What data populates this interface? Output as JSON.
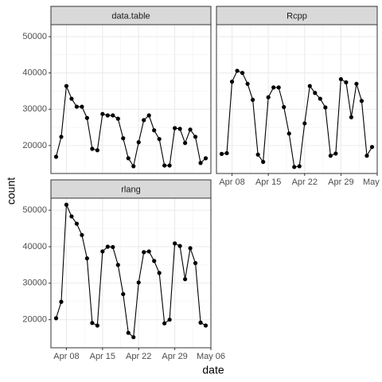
{
  "chart_data": {
    "type": "line",
    "facets": true,
    "xlabel": "date",
    "ylabel": "count",
    "color": "#000000",
    "grid": true,
    "x": [
      "Apr 06",
      "Apr 07",
      "Apr 08",
      "Apr 09",
      "Apr 10",
      "Apr 11",
      "Apr 12",
      "Apr 13",
      "Apr 14",
      "Apr 15",
      "Apr 16",
      "Apr 17",
      "Apr 18",
      "Apr 19",
      "Apr 20",
      "Apr 21",
      "Apr 22",
      "Apr 23",
      "Apr 24",
      "Apr 25",
      "Apr 26",
      "Apr 27",
      "Apr 28",
      "Apr 29",
      "Apr 30",
      "May 01",
      "May 02",
      "May 03",
      "May 04",
      "May 05"
    ],
    "xlim": [
      "Apr 05",
      "May 06"
    ],
    "xticks": [
      "Apr 08",
      "Apr 15",
      "Apr 22",
      "Apr 29",
      "May 06"
    ],
    "ylim": [
      12300,
      53300
    ],
    "yticks": [
      20000,
      30000,
      40000,
      50000
    ],
    "series": [
      {
        "name": "data.table",
        "values": [
          16900,
          22400,
          36400,
          32900,
          30700,
          30700,
          27600,
          19100,
          18700,
          28700,
          28300,
          28300,
          27400,
          22000,
          16500,
          14300,
          20900,
          27000,
          28300,
          24200,
          21800,
          14500,
          14500,
          24800,
          24600,
          20700,
          24400,
          22400,
          15200,
          16500
        ]
      },
      {
        "name": "Rcpp",
        "values": [
          17700,
          17900,
          37600,
          40600,
          40000,
          37000,
          32600,
          17500,
          15500,
          33300,
          36000,
          36000,
          30600,
          23300,
          14100,
          14300,
          26100,
          36400,
          34500,
          32900,
          30500,
          17200,
          17800,
          38300,
          37400,
          27800,
          37000,
          32300,
          17200,
          19600
        ]
      },
      {
        "name": "rlang",
        "values": [
          20400,
          24900,
          51500,
          48300,
          46300,
          43200,
          36800,
          19100,
          18400,
          38700,
          40000,
          39900,
          35000,
          27000,
          16400,
          15200,
          30200,
          38500,
          38700,
          36100,
          32800,
          19000,
          20000,
          40900,
          40200,
          31100,
          39600,
          35500,
          19200,
          18400
        ]
      }
    ]
  }
}
